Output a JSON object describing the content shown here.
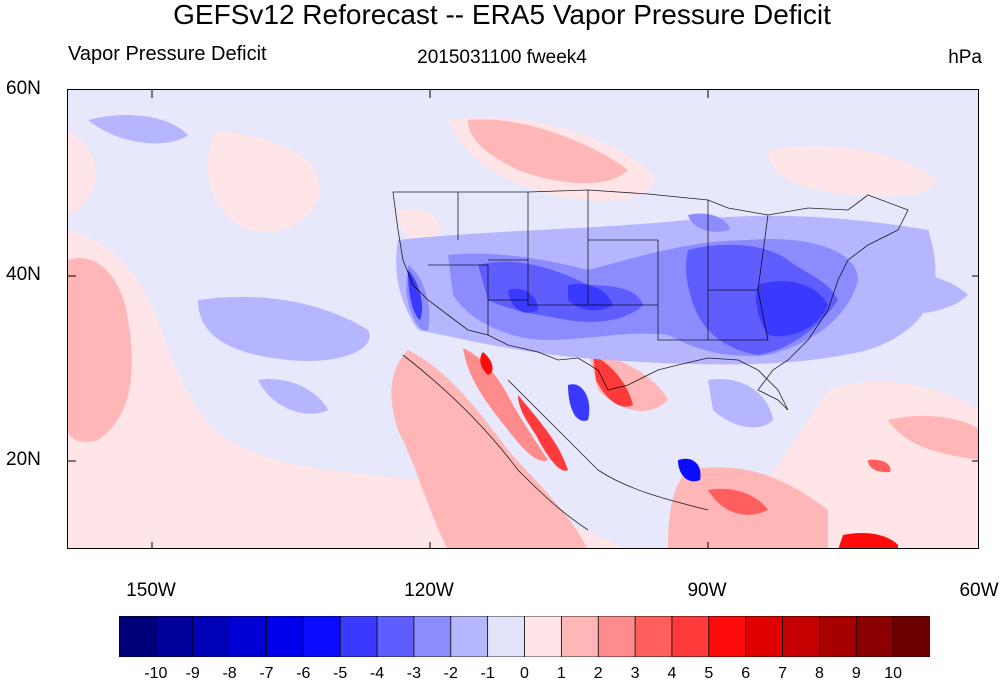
{
  "title": "GEFSv12 Reforecast -- ERA5 Vapor Pressure Deficit",
  "subtitle_left": "Vapor Pressure Deficit",
  "subtitle_center": "2015031100 fweek4",
  "subtitle_right": "hPa",
  "lat_labels": [
    "60N",
    "40N",
    "20N"
  ],
  "lon_labels": [
    "150W",
    "120W",
    "90W",
    "60W"
  ],
  "colorbar": {
    "labels": [
      "-10",
      "-9",
      "-8",
      "-7",
      "-6",
      "-5",
      "-4",
      "-3",
      "-2",
      "-1",
      "0",
      "1",
      "2",
      "3",
      "4",
      "5",
      "6",
      "7",
      "8",
      "9",
      "10"
    ],
    "colors": [
      "#00007a",
      "#00009a",
      "#0000b8",
      "#0000d4",
      "#0000ee",
      "#0b0bff",
      "#3a3aff",
      "#5e5eff",
      "#8c8cff",
      "#b6b6ff",
      "#e2e2fa",
      "#ffe4e8",
      "#ffb6b6",
      "#ff8c8c",
      "#ff5e5e",
      "#ff3a3a",
      "#ff0b0b",
      "#e00000",
      "#c40000",
      "#a80000",
      "#8a0000",
      "#6e0000"
    ]
  }
}
